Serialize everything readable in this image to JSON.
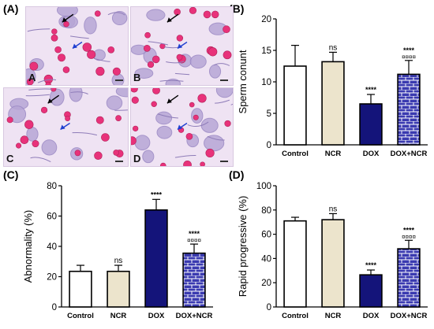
{
  "panels": {
    "A": "(A)",
    "B": "(B)",
    "C": "(C)",
    "D": "(D)"
  },
  "micrographs": [
    {
      "label": "A"
    },
    {
      "label": "B"
    },
    {
      "label": "C"
    },
    {
      "label": "D"
    }
  ],
  "colors": {
    "Control": "#ffffff",
    "NCR": "#ece4cc",
    "DOX": "#14147a",
    "DOX+NCR": "#3a3ab0",
    "brick": "#ffffff"
  },
  "chart_data": [
    {
      "id": "B",
      "type": "bar",
      "categories": [
        "Control",
        "NCR",
        "DOX",
        "DOX+NCR"
      ],
      "values": [
        12.5,
        13.2,
        6.5,
        11.2
      ],
      "errors": [
        3.3,
        1.5,
        1.5,
        2.2
      ],
      "annotations": [
        [
          "",
          ""
        ],
        [
          "ns",
          ""
        ],
        [
          "****",
          ""
        ],
        [
          "****",
          "¤¤¤¤"
        ]
      ],
      "title": "",
      "xlabel": "",
      "ylabel": "Sperm conunt",
      "ylim": [
        0,
        20
      ],
      "yticks": [
        0,
        5,
        10,
        15,
        20
      ]
    },
    {
      "id": "C",
      "type": "bar",
      "categories": [
        "Control",
        "NCR",
        "DOX",
        "DOX+NCR"
      ],
      "values": [
        23.5,
        23.5,
        64,
        35.5
      ],
      "errors": [
        4,
        4,
        7,
        6
      ],
      "annotations": [
        [
          "",
          ""
        ],
        [
          "ns",
          ""
        ],
        [
          "****",
          ""
        ],
        [
          "****",
          "¤¤¤¤"
        ]
      ],
      "title": "",
      "xlabel": "",
      "ylabel": "Abnormality (%)",
      "ylim": [
        0,
        80
      ],
      "yticks": [
        0,
        20,
        40,
        60,
        80
      ]
    },
    {
      "id": "D",
      "type": "bar",
      "categories": [
        "Control",
        "NCR",
        "DOX",
        "DOX+NCR"
      ],
      "values": [
        71,
        72,
        26.5,
        48
      ],
      "errors": [
        3,
        5,
        4,
        7
      ],
      "annotations": [
        [
          "",
          ""
        ],
        [
          "ns",
          ""
        ],
        [
          "****",
          ""
        ],
        [
          "****",
          "¤¤¤¤"
        ]
      ],
      "title": "",
      "xlabel": "",
      "ylabel": "Rapid progressive (%)",
      "ylim": [
        0,
        100
      ],
      "yticks": [
        0,
        20,
        40,
        60,
        80,
        100
      ]
    }
  ]
}
